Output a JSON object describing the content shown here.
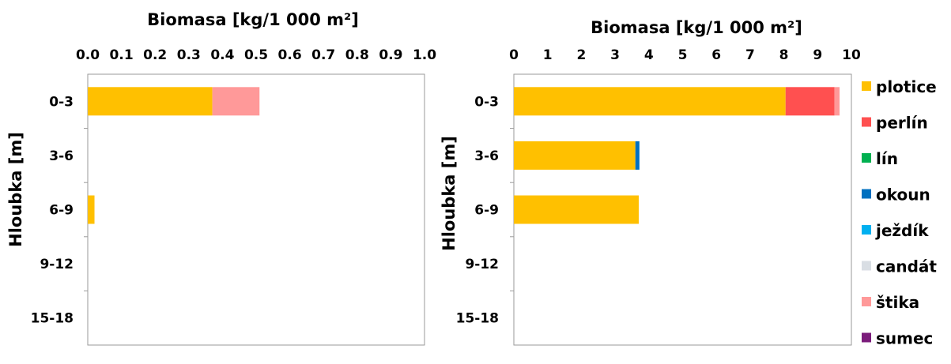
{
  "chart_data": [
    {
      "type": "bar",
      "orientation": "horizontal",
      "stacked": true,
      "title": "",
      "xlabel": "Biomasa [kg/1 000 m²]",
      "ylabel": "Hloubka [m]",
      "xlim": [
        0,
        1.0
      ],
      "xticks": [
        "0.0",
        "0.1",
        "0.2",
        "0.3",
        "0.4",
        "0.5",
        "0.6",
        "0.7",
        "0.8",
        "0.9",
        "1.0"
      ],
      "xaxis_position": "top",
      "grid": false,
      "categories": [
        "0-3",
        "3-6",
        "6-9",
        "9-12",
        "15-18"
      ],
      "series": [
        {
          "name": "plotice",
          "values": [
            0.37,
            0,
            0.02,
            0,
            0
          ]
        },
        {
          "name": "perlín",
          "values": [
            0,
            0,
            0,
            0,
            0
          ]
        },
        {
          "name": "lín",
          "values": [
            0,
            0,
            0,
            0,
            0
          ]
        },
        {
          "name": "okoun",
          "values": [
            0,
            0,
            0,
            0,
            0
          ]
        },
        {
          "name": "ježdík",
          "values": [
            0,
            0,
            0,
            0,
            0
          ]
        },
        {
          "name": "candát",
          "values": [
            0,
            0,
            0,
            0,
            0
          ]
        },
        {
          "name": "štika",
          "values": [
            0.14,
            0,
            0,
            0,
            0
          ]
        },
        {
          "name": "sumec",
          "values": [
            0,
            0,
            0,
            0,
            0
          ]
        }
      ]
    },
    {
      "type": "bar",
      "orientation": "horizontal",
      "stacked": true,
      "title": "",
      "xlabel": "Biomasa [kg/1 000 m²]",
      "ylabel": "Hloubka [m]",
      "xlim": [
        0,
        10
      ],
      "xticks": [
        "0",
        "1",
        "2",
        "3",
        "4",
        "5",
        "6",
        "7",
        "8",
        "9",
        "10"
      ],
      "xaxis_position": "top",
      "grid": false,
      "categories": [
        "0-3",
        "3-6",
        "6-9",
        "9-12",
        "15-18"
      ],
      "series": [
        {
          "name": "plotice",
          "values": [
            8.05,
            3.6,
            3.7,
            0,
            0
          ]
        },
        {
          "name": "perlín",
          "values": [
            1.45,
            0,
            0,
            0,
            0
          ]
        },
        {
          "name": "lín",
          "values": [
            0,
            0,
            0,
            0,
            0
          ]
        },
        {
          "name": "okoun",
          "values": [
            0,
            0.12,
            0,
            0,
            0
          ]
        },
        {
          "name": "ježdík",
          "values": [
            0,
            0,
            0,
            0,
            0
          ]
        },
        {
          "name": "candát",
          "values": [
            0,
            0,
            0,
            0,
            0
          ]
        },
        {
          "name": "štika",
          "values": [
            0.15,
            0,
            0,
            0,
            0
          ]
        },
        {
          "name": "sumec",
          "values": [
            0,
            0,
            0,
            0,
            0
          ]
        }
      ]
    }
  ],
  "legend": {
    "placement": "right",
    "items": [
      {
        "label": "plotice",
        "color": "#FFC000"
      },
      {
        "label": "perlín",
        "color": "#FF5050"
      },
      {
        "label": "lín",
        "color": "#00B050"
      },
      {
        "label": "okoun",
        "color": "#0070C0"
      },
      {
        "label": "ježdík",
        "color": "#00B0F0"
      },
      {
        "label": "candát",
        "color": "#D9DEE4"
      },
      {
        "label": "štika",
        "color": "#FF9999"
      },
      {
        "label": "sumec",
        "color": "#7B1C7B"
      }
    ]
  }
}
